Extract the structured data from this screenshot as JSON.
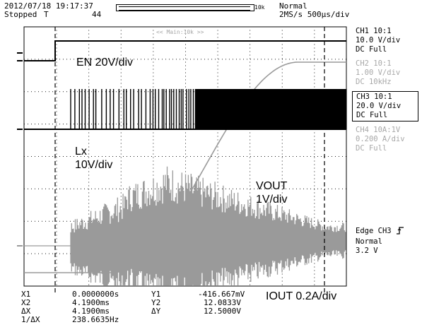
{
  "header": {
    "datetime": "2012/07/18 19:17:37",
    "status": "Stopped",
    "trigger_marker": "T",
    "acq_count": "44",
    "record_length": "10k",
    "trigger_mode": "Normal",
    "sample_settings": "2MS/s 500µs/div"
  },
  "screen": {
    "zoom_label": "<< Main:10k >>"
  },
  "channels": [
    {
      "title": "CH1 10:1",
      "scale": "10.0 V/div",
      "coupling": "DC    Full",
      "active": true
    },
    {
      "title": "CH2 10:1",
      "scale": "1.00 V/div",
      "coupling": "DC   10kHz",
      "active": false
    },
    {
      "title": "CH3 10:1",
      "scale": "20.0 V/div",
      "coupling": "DC    Full",
      "active": true,
      "selected": true
    },
    {
      "title": "CH4 10A:1V",
      "scale": "0.200 A/div",
      "coupling": "DC    Full",
      "active": false
    }
  ],
  "trigger": {
    "type": "Edge",
    "source": "CH3",
    "edge_icon": "rising-edge-icon",
    "mode": "Normal",
    "level": "3.2 V"
  },
  "annotations": {
    "en": "EN 20V/div",
    "lx_line1": "Lx",
    "lx_line2": "10V/div",
    "vout_line1": "VOUT",
    "vout_line2": "1V/div",
    "iout": "IOUT 0.2A/div"
  },
  "cursors": {
    "x1_label": "X1",
    "x1_value": "0.0000000s",
    "x2_label": "X2",
    "x2_value": "4.1900ms",
    "dx_label": "ΔX",
    "dx_value": "4.1900ms",
    "inv_dx_label": "1/ΔX",
    "inv_dx_value": "238.6635Hz",
    "y1_label": "Y1",
    "y1_value": "-416.667mV",
    "y2_label": "Y2",
    "y2_value": "12.0833V",
    "dy_label": "ΔY",
    "dy_value": "12.5000V"
  },
  "colors": {
    "active_trace": "#000000",
    "inactive_trace": "#9a9a9a",
    "grid": "#000000"
  }
}
